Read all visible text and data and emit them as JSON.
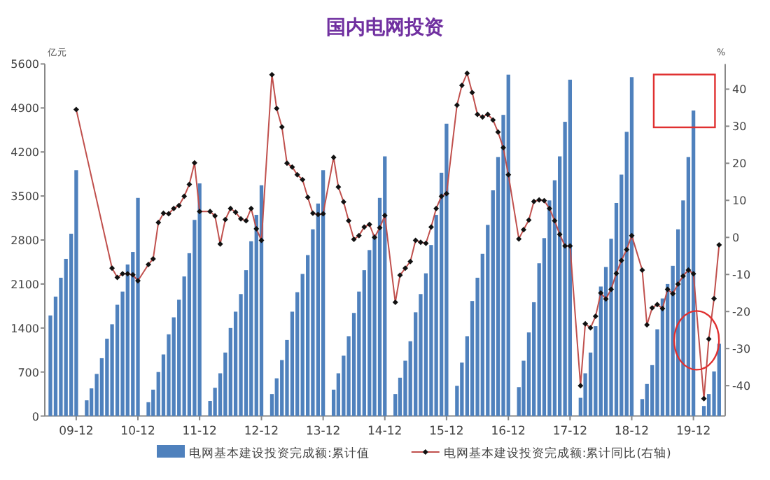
{
  "chart_data": {
    "type": "bar",
    "title": "国内电网投资",
    "ylabel": "亿元",
    "y2label": "%",
    "x": [
      "2009-07",
      "2009-08",
      "2009-09",
      "2009-10",
      "2009-11",
      "2009-12",
      "2010-02",
      "2010-03",
      "2010-04",
      "2010-05",
      "2010-06",
      "2010-07",
      "2010-08",
      "2010-09",
      "2010-10",
      "2010-11",
      "2010-12",
      "2011-02",
      "2011-03",
      "2011-04",
      "2011-05",
      "2011-06",
      "2011-07",
      "2011-08",
      "2011-09",
      "2011-10",
      "2011-11",
      "2011-12",
      "2012-02",
      "2012-03",
      "2012-04",
      "2012-05",
      "2012-06",
      "2012-07",
      "2012-08",
      "2012-09",
      "2012-10",
      "2012-11",
      "2012-12",
      "2013-02",
      "2013-03",
      "2013-04",
      "2013-05",
      "2013-06",
      "2013-07",
      "2013-08",
      "2013-09",
      "2013-10",
      "2013-11",
      "2013-12",
      "2014-02",
      "2014-03",
      "2014-04",
      "2014-05",
      "2014-06",
      "2014-07",
      "2014-08",
      "2014-09",
      "2014-10",
      "2014-11",
      "2014-12",
      "2015-02",
      "2015-03",
      "2015-04",
      "2015-05",
      "2015-06",
      "2015-07",
      "2015-08",
      "2015-09",
      "2015-10",
      "2015-11",
      "2015-12",
      "2016-02",
      "2016-03",
      "2016-04",
      "2016-05",
      "2016-06",
      "2016-07",
      "2016-08",
      "2016-09",
      "2016-10",
      "2016-11",
      "2016-12",
      "2017-02",
      "2017-03",
      "2017-04",
      "2017-05",
      "2017-06",
      "2017-07",
      "2017-08",
      "2017-09",
      "2017-10",
      "2017-11",
      "2017-12",
      "2018-02",
      "2018-03",
      "2018-04",
      "2018-05",
      "2018-06",
      "2018-07",
      "2018-08",
      "2018-09",
      "2018-10",
      "2018-11",
      "2018-12",
      "2019-02",
      "2019-03",
      "2019-04",
      "2019-05",
      "2019-06",
      "2019-07",
      "2019-08",
      "2019-09",
      "2019-10",
      "2019-11",
      "2019-12",
      "2020-02",
      "2020-03",
      "2020-04",
      "2020-05"
    ],
    "series": [
      {
        "name": "电网基本建设投资完成额:累计值",
        "color": "#4f81bd",
        "values": [
          1600,
          1900,
          2200,
          2500,
          2900,
          3910,
          250,
          440,
          670,
          920,
          1230,
          1460,
          1770,
          1980,
          2410,
          2610,
          3470,
          220,
          420,
          700,
          980,
          1300,
          1570,
          1850,
          2220,
          2590,
          3120,
          3700,
          240,
          450,
          680,
          1010,
          1400,
          1660,
          1940,
          2320,
          2780,
          3200,
          3670,
          350,
          600,
          890,
          1210,
          1660,
          1970,
          2260,
          2560,
          2970,
          3380,
          3910,
          420,
          680,
          960,
          1270,
          1640,
          1980,
          2320,
          2640,
          2890,
          3470,
          4130,
          350,
          610,
          880,
          1190,
          1650,
          1940,
          2270,
          2720,
          3200,
          3870,
          4650,
          480,
          850,
          1270,
          1830,
          2200,
          2580,
          3040,
          3590,
          4120,
          4790,
          5430,
          460,
          880,
          1330,
          1810,
          2430,
          2830,
          3430,
          3750,
          4130,
          4680,
          5350,
          290,
          680,
          1010,
          1430,
          2060,
          2370,
          2820,
          3390,
          3840,
          4520,
          5390,
          270,
          510,
          810,
          1380,
          1870,
          2100,
          2390,
          2970,
          3430,
          4120,
          4860,
          160,
          350,
          710,
          1150
        ]
      },
      {
        "name": "电网基本建设投资完成额:累计同比(右轴)",
        "type": "line",
        "axis": "y2",
        "color": "#c0504d",
        "x": [
          "2009-12",
          "2010-07",
          "2010-08",
          "2010-09",
          "2010-10",
          "2010-11",
          "2010-12",
          "2011-02",
          "2011-03",
          "2011-04",
          "2011-05",
          "2011-06",
          "2011-07",
          "2011-08",
          "2011-09",
          "2011-10",
          "2011-11",
          "2011-12",
          "2012-02",
          "2012-03",
          "2012-04",
          "2012-05",
          "2012-06",
          "2012-07",
          "2012-08",
          "2012-09",
          "2012-10",
          "2012-11",
          "2012-12",
          "2013-02",
          "2013-03",
          "2013-04",
          "2013-05",
          "2013-06",
          "2013-07",
          "2013-08",
          "2013-09",
          "2013-10",
          "2013-11",
          "2013-12",
          "2014-02",
          "2014-03",
          "2014-04",
          "2014-05",
          "2014-06",
          "2014-07",
          "2014-08",
          "2014-09",
          "2014-10",
          "2014-11",
          "2014-12",
          "2015-02",
          "2015-03",
          "2015-04",
          "2015-05",
          "2015-06",
          "2015-07",
          "2015-08",
          "2015-09",
          "2015-10",
          "2015-11",
          "2015-12",
          "2016-02",
          "2016-03",
          "2016-04",
          "2016-05",
          "2016-06",
          "2016-07",
          "2016-08",
          "2016-09",
          "2016-10",
          "2016-11",
          "2016-12",
          "2017-02",
          "2017-03",
          "2017-04",
          "2017-05",
          "2017-06",
          "2017-07",
          "2017-08",
          "2017-09",
          "2017-10",
          "2017-11",
          "2017-12",
          "2018-02",
          "2018-03",
          "2018-04",
          "2018-05",
          "2018-06",
          "2018-07",
          "2018-08",
          "2018-09",
          "2018-10",
          "2018-11",
          "2018-12",
          "2019-02",
          "2019-03",
          "2019-04",
          "2019-05",
          "2019-06",
          "2019-07",
          "2019-08",
          "2019-09",
          "2019-10",
          "2019-11",
          "2019-12",
          "2020-02",
          "2020-03",
          "2020-04",
          "2020-05"
        ],
        "values": [
          34.5,
          -8.3,
          -10.8,
          -9.8,
          -9.8,
          -10.1,
          -11.7,
          -7.3,
          -5.8,
          4.0,
          6.5,
          6.4,
          7.8,
          8.6,
          11.1,
          14.3,
          20.1,
          7.0,
          7.0,
          5.8,
          -1.8,
          4.8,
          7.8,
          6.8,
          5.0,
          4.5,
          7.8,
          2.3,
          -0.8,
          43.9,
          34.8,
          29.8,
          20.0,
          19.0,
          16.9,
          15.6,
          10.8,
          6.5,
          6.2,
          6.4,
          21.6,
          13.6,
          9.6,
          4.5,
          -0.5,
          0.5,
          2.8,
          3.5,
          0,
          2.6,
          5.9,
          -17.5,
          -10.2,
          -8.3,
          -6.5,
          -0.8,
          -1.3,
          -1.6,
          2.8,
          7.8,
          11.1,
          11.8,
          35.7,
          41.0,
          44.3,
          39.1,
          33.2,
          32.5,
          33.2,
          31.7,
          28.4,
          24.2,
          16.9,
          -0.4,
          2.1,
          4.7,
          9.7,
          10.1,
          9.9,
          7.8,
          4.5,
          0.8,
          -2.3,
          -2.3,
          -40.0,
          -23.3,
          -24.4,
          -21.3,
          -15.0,
          -16.6,
          -14.0,
          -9.7,
          -6.2,
          -3.3,
          0.5,
          -8.8,
          -23.6,
          -19.0,
          -18.1,
          -19.2,
          -14.0,
          -15.2,
          -12.6,
          -10.4,
          -8.8,
          -9.8,
          -43.5,
          -27.4,
          -16.5,
          -2.0
        ]
      }
    ],
    "xlim": [
      "2009-05-29",
      "2020-06-06"
    ],
    "xticks": [
      {
        "value": "2009-12",
        "label": "09-12"
      },
      {
        "value": "2010-12",
        "label": "10-12"
      },
      {
        "value": "2011-12",
        "label": "11-12"
      },
      {
        "value": "2012-12",
        "label": "12-12"
      },
      {
        "value": "2013-12",
        "label": "13-12"
      },
      {
        "value": "2014-12",
        "label": "14-12"
      },
      {
        "value": "2015-12",
        "label": "15-12"
      },
      {
        "value": "2016-12",
        "label": "16-12"
      },
      {
        "value": "2017-12",
        "label": "17-12"
      },
      {
        "value": "2018-12",
        "label": "18-12"
      },
      {
        "value": "2019-12",
        "label": "19-12"
      }
    ],
    "ylim": [
      0,
      5600
    ],
    "yticks": [
      0,
      700,
      1400,
      2100,
      2800,
      3500,
      4200,
      4900,
      5600
    ],
    "y2lim": [
      -48.2,
      46.8
    ],
    "y2ticks": [
      -40,
      -30,
      -20,
      -10,
      0,
      10,
      20,
      30,
      40
    ],
    "marker": "diamond",
    "legend": "bottom"
  }
}
